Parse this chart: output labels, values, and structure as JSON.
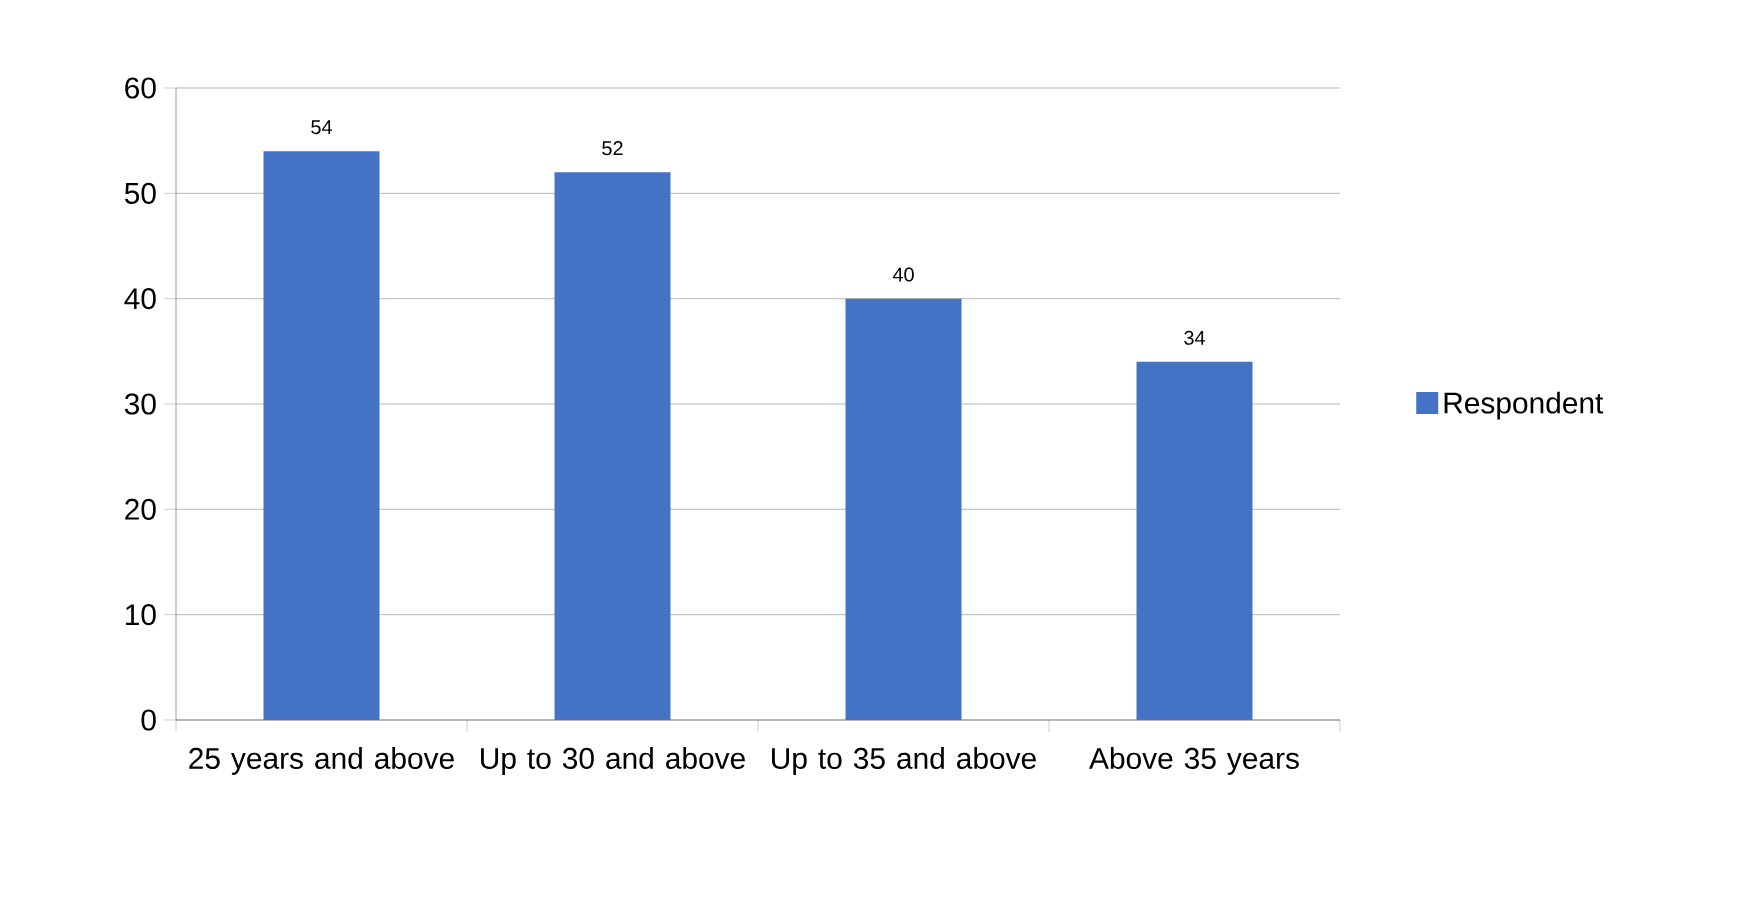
{
  "chart_data": {
    "type": "bar",
    "categories": [
      "25 years and above",
      "Up to 30 and above",
      "Up to 35 and above",
      "Above 35 years"
    ],
    "series": [
      {
        "name": "Respondent",
        "color": "#4472c4",
        "values": [
          54,
          52,
          40,
          34
        ]
      }
    ],
    "ylim": [
      0,
      60
    ],
    "yticks": [
      0,
      10,
      20,
      30,
      40,
      50,
      60
    ],
    "grid": "y",
    "legend": "right",
    "data_labels": true
  }
}
